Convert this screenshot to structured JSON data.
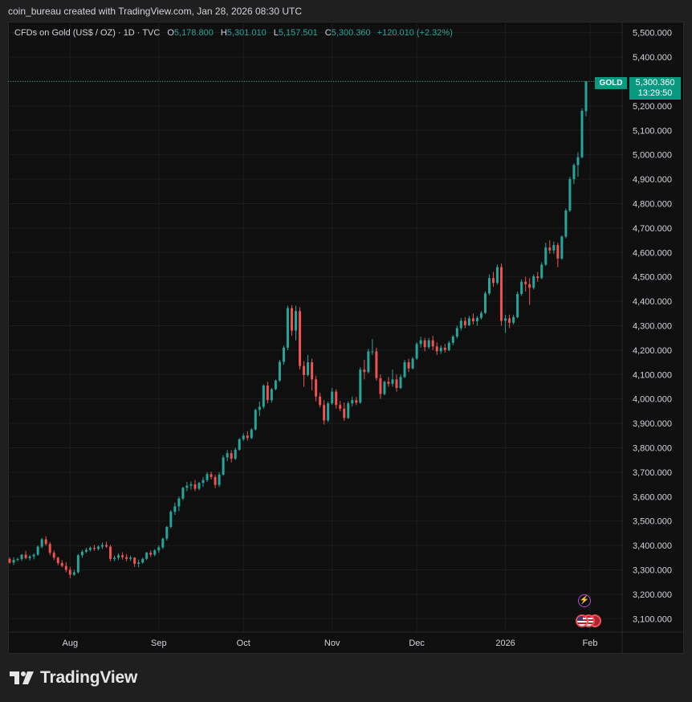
{
  "caption": "coin_bureau created with TradingView.com, Jan 28, 2026 08:30 UTC",
  "legend": {
    "symbol": "CFDs on Gold (US$ / OZ) · 1D · TVC",
    "o_label": "O",
    "o_value": "5,178.800",
    "h_label": "H",
    "h_value": "5,301.010",
    "l_label": "L",
    "l_value": "5,157.501",
    "c_label": "C",
    "c_value": "5,300.360",
    "change": "+120.010 (+2.32%)"
  },
  "price_tag": {
    "ticker": "GOLD",
    "price": "5,300.360",
    "countdown": "13:29:50"
  },
  "icons": {
    "event": "lightning-event-icon",
    "flags": "us-flag-event-icons"
  },
  "brand": {
    "wordmark": "TradingView",
    "logo": "tradingview-logo-icon"
  },
  "colors": {
    "up": "#26a69a",
    "down": "#ef5350",
    "background": "#0f0f0f",
    "grid": "#1d1d1d",
    "tag": "#089981"
  },
  "chart_data": {
    "type": "candlestick",
    "ylim": [
      3045,
      5545
    ],
    "y_ticks": [
      "5,500.000",
      "5,400.000",
      "5,300.000",
      "5,200.000",
      "5,100.000",
      "5,000.000",
      "4,900.000",
      "4,800.000",
      "4,700.000",
      "4,600.000",
      "4,500.000",
      "4,400.000",
      "4,300.000",
      "4,200.000",
      "4,100.000",
      "4,000.000",
      "3,900.000",
      "3,800.000",
      "3,700.000",
      "3,600.000",
      "3,500.000",
      "3,400.000",
      "3,300.000",
      "3,200.000",
      "3,100.000"
    ],
    "y_tick_values": [
      5500,
      5400,
      5300,
      5200,
      5100,
      5000,
      4900,
      4800,
      4700,
      4600,
      4500,
      4400,
      4300,
      4200,
      4100,
      4000,
      3900,
      3800,
      3700,
      3600,
      3500,
      3400,
      3300,
      3200,
      3100
    ],
    "x_labels": [
      "Aug",
      "Sep",
      "Oct",
      "Nov",
      "Dec",
      "2026",
      "Feb"
    ],
    "x_label_index": [
      15,
      37,
      58,
      80,
      101,
      123,
      144
    ],
    "last_price": 5300.36,
    "candles": [
      [
        3345,
        3351,
        3325,
        3330
      ],
      [
        3330,
        3352,
        3320,
        3341
      ],
      [
        3341,
        3350,
        3335,
        3344
      ],
      [
        3344,
        3365,
        3336,
        3362
      ],
      [
        3362,
        3378,
        3343,
        3348
      ],
      [
        3348,
        3361,
        3338,
        3355
      ],
      [
        3355,
        3368,
        3343,
        3362
      ],
      [
        3362,
        3400,
        3358,
        3395
      ],
      [
        3395,
        3431,
        3388,
        3425
      ],
      [
        3425,
        3438,
        3399,
        3406
      ],
      [
        3406,
        3414,
        3360,
        3370
      ],
      [
        3370,
        3380,
        3340,
        3350
      ],
      [
        3350,
        3354,
        3319,
        3328
      ],
      [
        3328,
        3340,
        3310,
        3316
      ],
      [
        3316,
        3332,
        3290,
        3300
      ],
      [
        3300,
        3312,
        3266,
        3280
      ],
      [
        3280,
        3300,
        3275,
        3290
      ],
      [
        3290,
        3365,
        3285,
        3360
      ],
      [
        3360,
        3382,
        3350,
        3374
      ],
      [
        3374,
        3390,
        3368,
        3382
      ],
      [
        3382,
        3396,
        3375,
        3390
      ],
      [
        3390,
        3402,
        3378,
        3386
      ],
      [
        3386,
        3400,
        3380,
        3395
      ],
      [
        3395,
        3412,
        3385,
        3402
      ],
      [
        3402,
        3415,
        3390,
        3395
      ],
      [
        3395,
        3402,
        3335,
        3345
      ],
      [
        3345,
        3358,
        3336,
        3350
      ],
      [
        3350,
        3368,
        3340,
        3360
      ],
      [
        3360,
        3372,
        3342,
        3352
      ],
      [
        3352,
        3364,
        3335,
        3345
      ],
      [
        3345,
        3358,
        3336,
        3350
      ],
      [
        3350,
        3352,
        3312,
        3325
      ],
      [
        3325,
        3342,
        3310,
        3330
      ],
      [
        3330,
        3350,
        3325,
        3345
      ],
      [
        3345,
        3374,
        3340,
        3370
      ],
      [
        3370,
        3380,
        3352,
        3362
      ],
      [
        3362,
        3385,
        3355,
        3380
      ],
      [
        3380,
        3400,
        3370,
        3392
      ],
      [
        3392,
        3432,
        3385,
        3428
      ],
      [
        3428,
        3480,
        3420,
        3476
      ],
      [
        3476,
        3545,
        3470,
        3538
      ],
      [
        3538,
        3575,
        3525,
        3560
      ],
      [
        3560,
        3600,
        3540,
        3592
      ],
      [
        3592,
        3640,
        3585,
        3636
      ],
      [
        3636,
        3660,
        3622,
        3645
      ],
      [
        3645,
        3662,
        3628,
        3650
      ],
      [
        3650,
        3668,
        3622,
        3632
      ],
      [
        3632,
        3660,
        3626,
        3656
      ],
      [
        3656,
        3680,
        3640,
        3668
      ],
      [
        3668,
        3700,
        3660,
        3692
      ],
      [
        3692,
        3702,
        3670,
        3680
      ],
      [
        3680,
        3690,
        3635,
        3648
      ],
      [
        3648,
        3700,
        3640,
        3690
      ],
      [
        3690,
        3770,
        3685,
        3760
      ],
      [
        3760,
        3790,
        3745,
        3778
      ],
      [
        3778,
        3790,
        3740,
        3755
      ],
      [
        3755,
        3800,
        3750,
        3792
      ],
      [
        3792,
        3840,
        3788,
        3835
      ],
      [
        3835,
        3860,
        3828,
        3850
      ],
      [
        3850,
        3868,
        3830,
        3840
      ],
      [
        3840,
        3880,
        3835,
        3875
      ],
      [
        3875,
        3960,
        3870,
        3955
      ],
      [
        3955,
        3990,
        3930,
        3968
      ],
      [
        3968,
        4060,
        3960,
        4055
      ],
      [
        4055,
        4070,
        3982,
        3995
      ],
      [
        3995,
        4045,
        3985,
        4040
      ],
      [
        4040,
        4080,
        4035,
        4075
      ],
      [
        4075,
        4160,
        4070,
        4152
      ],
      [
        4152,
        4218,
        4140,
        4210
      ],
      [
        4210,
        4382,
        4200,
        4372
      ],
      [
        4372,
        4384,
        4258,
        4280
      ],
      [
        4280,
        4382,
        4240,
        4360
      ],
      [
        4360,
        4376,
        4120,
        4135
      ],
      [
        4135,
        4155,
        4050,
        4098
      ],
      [
        4098,
        4180,
        4092,
        4150
      ],
      [
        4150,
        4165,
        4035,
        4080
      ],
      [
        4080,
        4095,
        3990,
        4010
      ],
      [
        4010,
        4025,
        3965,
        3975
      ],
      [
        3975,
        3995,
        3895,
        3912
      ],
      [
        3912,
        3990,
        3905,
        3982
      ],
      [
        3982,
        4045,
        3975,
        4030
      ],
      [
        4030,
        4040,
        3960,
        3975
      ],
      [
        3975,
        3992,
        3950,
        3960
      ],
      [
        3960,
        3985,
        3910,
        3922
      ],
      [
        3922,
        3990,
        3918,
        3982
      ],
      [
        3982,
        4010,
        3970,
        3995
      ],
      [
        3995,
        4008,
        3975,
        3985
      ],
      [
        3985,
        4130,
        3980,
        4120
      ],
      [
        4120,
        4160,
        4080,
        4110
      ],
      [
        4110,
        4205,
        4105,
        4195
      ],
      [
        4195,
        4245,
        4180,
        4195
      ],
      [
        4195,
        4210,
        4075,
        4085
      ],
      [
        4085,
        4100,
        4000,
        4020
      ],
      [
        4020,
        4075,
        4015,
        4070
      ],
      [
        4070,
        4090,
        4050,
        4062
      ],
      [
        4062,
        4120,
        4050,
        4080
      ],
      [
        4080,
        4100,
        4030,
        4045
      ],
      [
        4045,
        4100,
        4040,
        4090
      ],
      [
        4090,
        4160,
        4085,
        4150
      ],
      [
        4150,
        4165,
        4110,
        4125
      ],
      [
        4125,
        4172,
        4120,
        4165
      ],
      [
        4165,
        4232,
        4160,
        4225
      ],
      [
        4225,
        4255,
        4210,
        4240
      ],
      [
        4240,
        4250,
        4195,
        4212
      ],
      [
        4212,
        4250,
        4205,
        4240
      ],
      [
        4240,
        4258,
        4200,
        4215
      ],
      [
        4215,
        4232,
        4180,
        4195
      ],
      [
        4195,
        4220,
        4185,
        4210
      ],
      [
        4210,
        4225,
        4190,
        4200
      ],
      [
        4200,
        4238,
        4195,
        4230
      ],
      [
        4230,
        4262,
        4220,
        4255
      ],
      [
        4255,
        4300,
        4248,
        4290
      ],
      [
        4290,
        4332,
        4280,
        4320
      ],
      [
        4320,
        4335,
        4290,
        4302
      ],
      [
        4302,
        4340,
        4298,
        4330
      ],
      [
        4330,
        4350,
        4305,
        4318
      ],
      [
        4318,
        4340,
        4300,
        4332
      ],
      [
        4332,
        4360,
        4325,
        4352
      ],
      [
        4352,
        4440,
        4348,
        4432
      ],
      [
        4432,
        4510,
        4425,
        4495
      ],
      [
        4495,
        4520,
        4460,
        4475
      ],
      [
        4475,
        4550,
        4468,
        4540
      ],
      [
        4540,
        4555,
        4300,
        4320
      ],
      [
        4320,
        4345,
        4270,
        4330
      ],
      [
        4330,
        4345,
        4290,
        4312
      ],
      [
        4312,
        4345,
        4305,
        4335
      ],
      [
        4335,
        4440,
        4330,
        4430
      ],
      [
        4430,
        4490,
        4422,
        4480
      ],
      [
        4480,
        4500,
        4440,
        4470
      ],
      [
        4470,
        4495,
        4385,
        4455
      ],
      [
        4455,
        4510,
        4448,
        4502
      ],
      [
        4502,
        4520,
        4480,
        4495
      ],
      [
        4495,
        4560,
        4490,
        4550
      ],
      [
        4550,
        4640,
        4545,
        4620
      ],
      [
        4620,
        4650,
        4595,
        4608
      ],
      [
        4608,
        4645,
        4595,
        4630
      ],
      [
        4630,
        4640,
        4540,
        4575
      ],
      [
        4575,
        4670,
        4570,
        4665
      ],
      [
        4665,
        4780,
        4658,
        4772
      ],
      [
        4772,
        4910,
        4765,
        4900
      ],
      [
        4900,
        4965,
        4880,
        4958
      ],
      [
        4958,
        5010,
        4910,
        4990
      ],
      [
        4990,
        5190,
        4985,
        5180
      ],
      [
        5178.8,
        5301.01,
        5157.501,
        5300.36
      ]
    ]
  }
}
